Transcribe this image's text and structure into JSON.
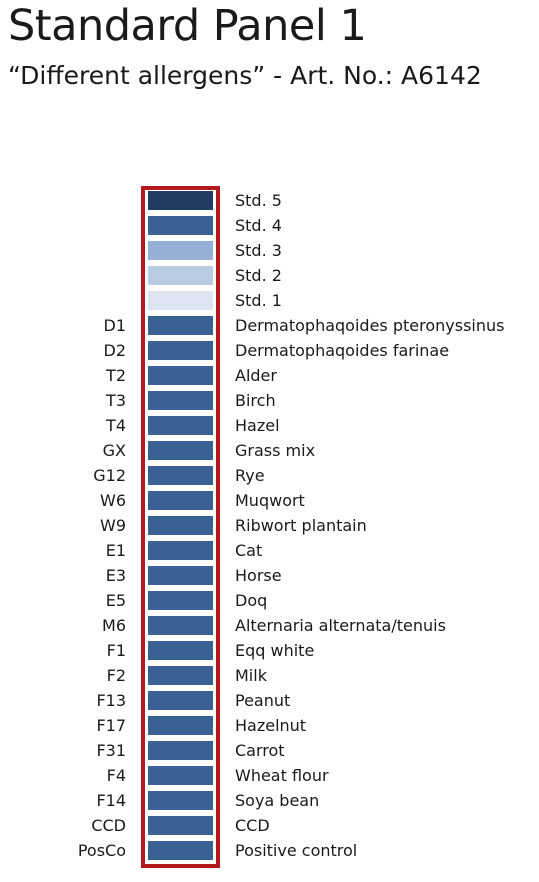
{
  "title": "Standard Panel 1",
  "subtitle": "“Different allergens” - Art. No.: A6142",
  "colors": {
    "frame": "#b31a1e",
    "band_default": "#3a6194"
  },
  "rows": [
    {
      "code": "",
      "label": "Std. 5",
      "color": "#1f3d63"
    },
    {
      "code": "",
      "label": "Std. 4",
      "color": "#3a6194"
    },
    {
      "code": "",
      "label": "Std. 3",
      "color": "#95b0d4"
    },
    {
      "code": "",
      "label": "Std. 2",
      "color": "#bacce3"
    },
    {
      "code": "",
      "label": "Std. 1",
      "color": "#dbe4f0"
    },
    {
      "code": "D1",
      "label": "Dermatophaqoides pteronyssinus",
      "color": "#3a6194"
    },
    {
      "code": "D2",
      "label": "Dermatophaqoides farinae",
      "color": "#3a6194"
    },
    {
      "code": "T2",
      "label": "Alder",
      "color": "#3a6194"
    },
    {
      "code": "T3",
      "label": "Birch",
      "color": "#3a6194"
    },
    {
      "code": "T4",
      "label": "Hazel",
      "color": "#3a6194"
    },
    {
      "code": "GX",
      "label": "Grass mix",
      "color": "#3a6194"
    },
    {
      "code": "G12",
      "label": "Rye",
      "color": "#3a6194"
    },
    {
      "code": "W6",
      "label": "Muqwort",
      "color": "#3a6194"
    },
    {
      "code": "W9",
      "label": "Ribwort plantain",
      "color": "#3a6194"
    },
    {
      "code": "E1",
      "label": "Cat",
      "color": "#3a6194"
    },
    {
      "code": "E3",
      "label": "Horse",
      "color": "#3a6194"
    },
    {
      "code": "E5",
      "label": "Doq",
      "color": "#3a6194"
    },
    {
      "code": "M6",
      "label": "Alternaria alternata/tenuis",
      "color": "#3a6194"
    },
    {
      "code": "F1",
      "label": "Eqq white",
      "color": "#3a6194"
    },
    {
      "code": "F2",
      "label": "Milk",
      "color": "#3a6194"
    },
    {
      "code": "F13",
      "label": "Peanut",
      "color": "#3a6194"
    },
    {
      "code": "F17",
      "label": "Hazelnut",
      "color": "#3a6194"
    },
    {
      "code": "F31",
      "label": "Carrot",
      "color": "#3a6194"
    },
    {
      "code": "F4",
      "label": "Wheat flour",
      "color": "#3a6194"
    },
    {
      "code": "F14",
      "label": "Soya bean",
      "color": "#3a6194"
    },
    {
      "code": "CCD",
      "label": "CCD",
      "color": "#3a6194"
    },
    {
      "code": "PosCo",
      "label": "Positive control",
      "color": "#3a6194"
    }
  ]
}
